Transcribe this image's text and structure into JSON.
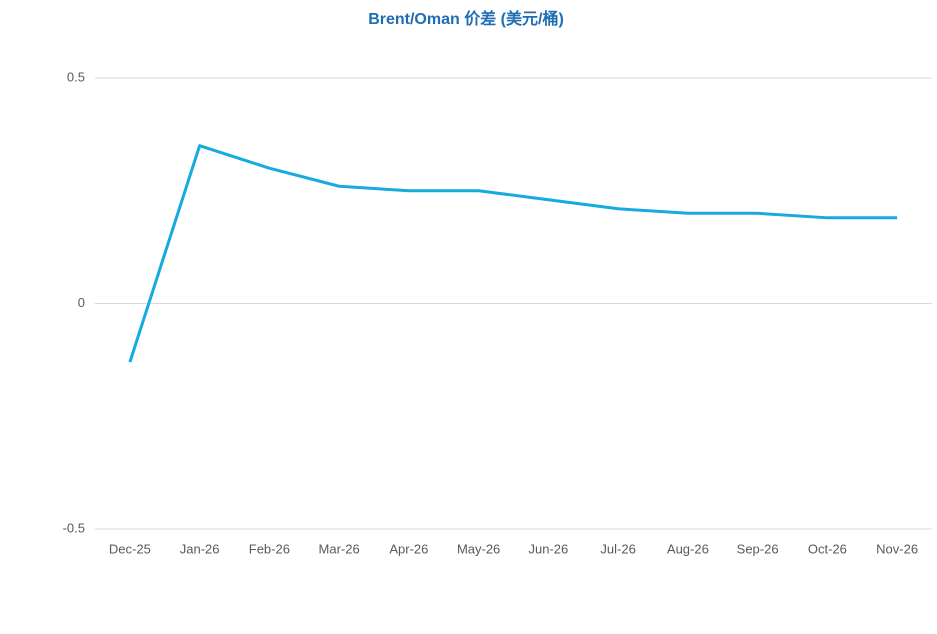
{
  "chart_data": {
    "type": "line",
    "title": "Brent/Oman 价差 (美元/桶)",
    "categories": [
      "Dec-25",
      "Jan-26",
      "Feb-26",
      "Mar-26",
      "Apr-26",
      "May-26",
      "Jun-26",
      "Jul-26",
      "Aug-26",
      "Sep-26",
      "Oct-26",
      "Nov-26"
    ],
    "values": [
      -0.13,
      0.35,
      0.3,
      0.26,
      0.25,
      0.25,
      0.23,
      0.21,
      0.2,
      0.2,
      0.19,
      0.19
    ],
    "color": "#17aadf",
    "ylim": [
      -0.5,
      0.5
    ],
    "yticks": [
      -0.5,
      0,
      0.5
    ],
    "grid": true
  }
}
